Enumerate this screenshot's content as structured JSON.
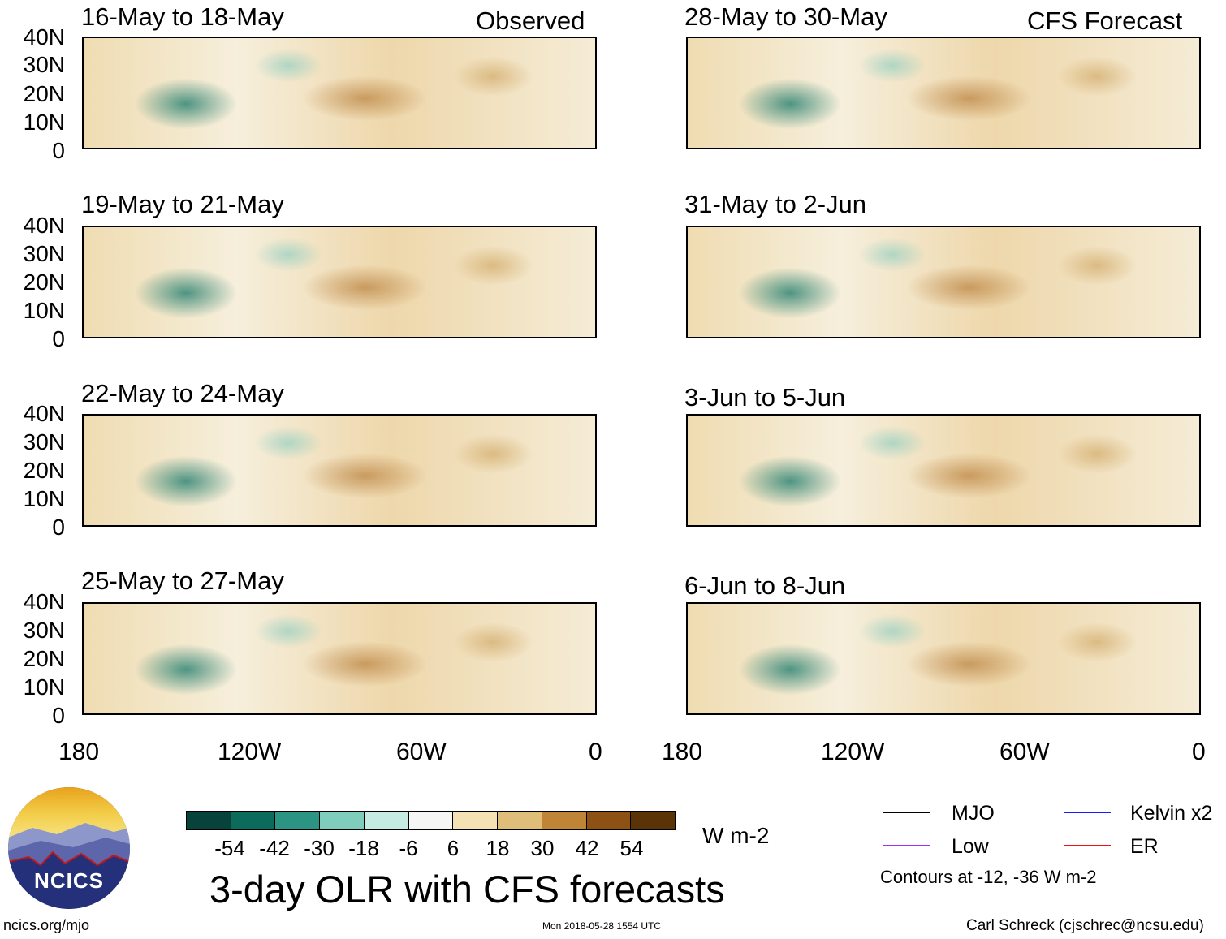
{
  "panels": [
    {
      "title": "16-May to 18-May",
      "tag": "Observed"
    },
    {
      "title": "28-May to 30-May",
      "tag": "CFS Forecast"
    },
    {
      "title": "19-May to 21-May"
    },
    {
      "title": "31-May to 2-Jun"
    },
    {
      "title": "22-May to 24-May"
    },
    {
      "title": "3-Jun to 5-Jun"
    },
    {
      "title": "25-May to 27-May"
    },
    {
      "title": "6-Jun to 8-Jun"
    }
  ],
  "y_ticks": [
    "40N",
    "30N",
    "20N",
    "10N",
    "0"
  ],
  "x_ticks": [
    "180",
    "120W",
    "60W",
    "0"
  ],
  "colorbar": {
    "levels": [
      "-54",
      "-42",
      "-30",
      "-18",
      "-6",
      "6",
      "18",
      "30",
      "42",
      "54"
    ],
    "colors": [
      "#07433a",
      "#0c6c5c",
      "#2c9483",
      "#7fcdbd",
      "#c6ebe2",
      "#f6f6f5",
      "#f5e2b4",
      "#dfbe7a",
      "#bf8436",
      "#8c5113",
      "#5a3306"
    ],
    "units": "W m-2"
  },
  "legend": [
    {
      "label": "MJO",
      "color": "#000000"
    },
    {
      "label": "Kelvin x2",
      "color": "#1a1aff"
    },
    {
      "label": "Low",
      "color": "#9b30ff"
    },
    {
      "label": "ER",
      "color": "#ee1111"
    }
  ],
  "contours_note": "Contours at -12, -36 W m-2",
  "main_title": "3-day OLR with CFS forecasts",
  "logo_text": "NCICS",
  "footer": {
    "url": "ncics.org/mjo",
    "timestamp": "Mon 2018-05-28 1554 UTC",
    "credit": "Carl Schreck (cjschrec@ncsu.edu)"
  }
}
